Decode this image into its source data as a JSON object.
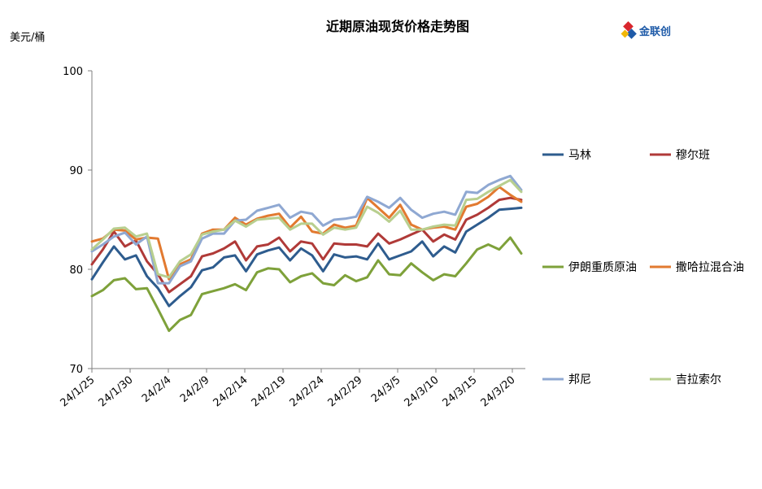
{
  "logo": {
    "text": "金联创",
    "colors": {
      "red": "#d9262d",
      "blue": "#1f5ba8",
      "yellow": "#f2b707"
    }
  },
  "chart_data": {
    "type": "line",
    "title": "近期原油现货价格走势图",
    "ylabel": "美元/桶",
    "xlabel": "",
    "ylim": [
      70,
      100
    ],
    "y_ticks": [
      70,
      80,
      90,
      100
    ],
    "grid": false,
    "legend_position": "right",
    "x": [
      "24/1/25",
      "24/1/26",
      "24/1/29",
      "24/1/30",
      "24/1/31",
      "24/2/1",
      "24/2/2",
      "24/2/5",
      "24/2/6",
      "24/2/7",
      "24/2/8",
      "24/2/9",
      "24/2/13",
      "24/2/14",
      "24/2/15",
      "24/2/16",
      "24/2/19",
      "24/2/20",
      "24/2/21",
      "24/2/22",
      "24/2/23",
      "24/2/26",
      "24/2/27",
      "24/2/28",
      "24/2/29",
      "24/3/1",
      "24/3/4",
      "24/3/5",
      "24/3/6",
      "24/3/7",
      "24/3/8",
      "24/3/11",
      "24/3/12",
      "24/3/13",
      "24/3/14",
      "24/3/15",
      "24/3/18",
      "24/3/19",
      "24/3/20",
      "24/3/21"
    ],
    "x_tick_labels": [
      "24/1/25",
      "24/1/30",
      "24/2/4",
      "24/2/9",
      "24/2/14",
      "24/2/19",
      "24/2/24",
      "24/2/29",
      "24/3/5",
      "24/3/10",
      "24/3/15",
      "24/3/20"
    ],
    "series": [
      {
        "name": "马林",
        "color": "#2e5c8e",
        "values": [
          79.0,
          80.7,
          82.3,
          81.0,
          81.4,
          79.3,
          78.1,
          76.3,
          77.3,
          78.2,
          79.9,
          80.2,
          81.2,
          81.4,
          79.8,
          81.5,
          81.9,
          82.2,
          80.9,
          82.1,
          81.4,
          79.8,
          81.5,
          81.2,
          81.3,
          81.0,
          82.6,
          81.0,
          81.4,
          81.8,
          82.8,
          81.3,
          82.3,
          81.7,
          83.8,
          84.5,
          85.2,
          86.0,
          86.1,
          86.2
        ]
      },
      {
        "name": "穆尔班",
        "color": "#b03a38",
        "values": [
          80.5,
          82.0,
          83.8,
          82.3,
          82.9,
          80.8,
          79.5,
          77.7,
          78.5,
          79.3,
          81.3,
          81.6,
          82.1,
          82.8,
          80.9,
          82.3,
          82.5,
          83.2,
          81.8,
          82.8,
          82.6,
          81.0,
          82.6,
          82.5,
          82.5,
          82.3,
          83.6,
          82.6,
          83.0,
          83.5,
          84.0,
          82.8,
          83.5,
          83.0,
          85.0,
          85.5,
          86.2,
          87.0,
          87.2,
          87.0
        ]
      },
      {
        "name": "伊朗重质原油",
        "color": "#7ea13a",
        "values": [
          77.3,
          77.9,
          78.9,
          79.1,
          78.0,
          78.1,
          76.0,
          73.8,
          74.9,
          75.4,
          77.5,
          77.8,
          78.1,
          78.5,
          77.9,
          79.7,
          80.1,
          80.0,
          78.7,
          79.3,
          79.6,
          78.6,
          78.4,
          79.4,
          78.8,
          79.2,
          80.9,
          79.5,
          79.4,
          80.6,
          79.7,
          78.9,
          79.5,
          79.3,
          80.6,
          82.0,
          82.5,
          82.0,
          83.2,
          81.6
        ]
      },
      {
        "name": "撒哈拉混合油",
        "color": "#e27a30",
        "values": [
          82.8,
          83.1,
          84.0,
          83.9,
          83.0,
          83.2,
          83.1,
          79.0,
          80.5,
          81.0,
          83.6,
          84.0,
          84.0,
          85.2,
          84.5,
          85.1,
          85.4,
          85.6,
          84.2,
          85.3,
          83.8,
          83.6,
          84.5,
          84.2,
          84.4,
          87.2,
          86.2,
          85.2,
          86.5,
          84.5,
          84.0,
          84.2,
          84.3,
          84.0,
          86.3,
          86.6,
          87.3,
          88.3,
          87.5,
          86.8
        ]
      },
      {
        "name": "邦尼",
        "color": "#8fa8d2",
        "values": [
          81.8,
          82.5,
          83.3,
          83.7,
          82.5,
          83.3,
          78.6,
          78.6,
          80.3,
          80.8,
          83.1,
          83.6,
          83.6,
          84.9,
          85.0,
          85.9,
          86.2,
          86.5,
          85.2,
          85.8,
          85.6,
          84.4,
          85.0,
          85.1,
          85.3,
          87.3,
          86.8,
          86.2,
          87.2,
          86.0,
          85.2,
          85.6,
          85.8,
          85.5,
          87.8,
          87.7,
          88.5,
          89.0,
          89.4,
          88.0
        ]
      },
      {
        "name": "吉拉索尔",
        "color": "#b8cf8f",
        "values": [
          82.0,
          83.0,
          84.1,
          84.2,
          83.3,
          83.6,
          79.5,
          79.2,
          80.8,
          81.5,
          83.5,
          83.8,
          84.0,
          84.9,
          84.3,
          85.0,
          85.1,
          85.2,
          84.0,
          84.6,
          84.6,
          83.5,
          84.2,
          84.0,
          84.2,
          86.3,
          85.7,
          84.8,
          85.9,
          84.0,
          84.0,
          84.3,
          84.5,
          84.4,
          87.0,
          87.1,
          87.8,
          88.4,
          89.0,
          87.8
        ]
      }
    ]
  }
}
